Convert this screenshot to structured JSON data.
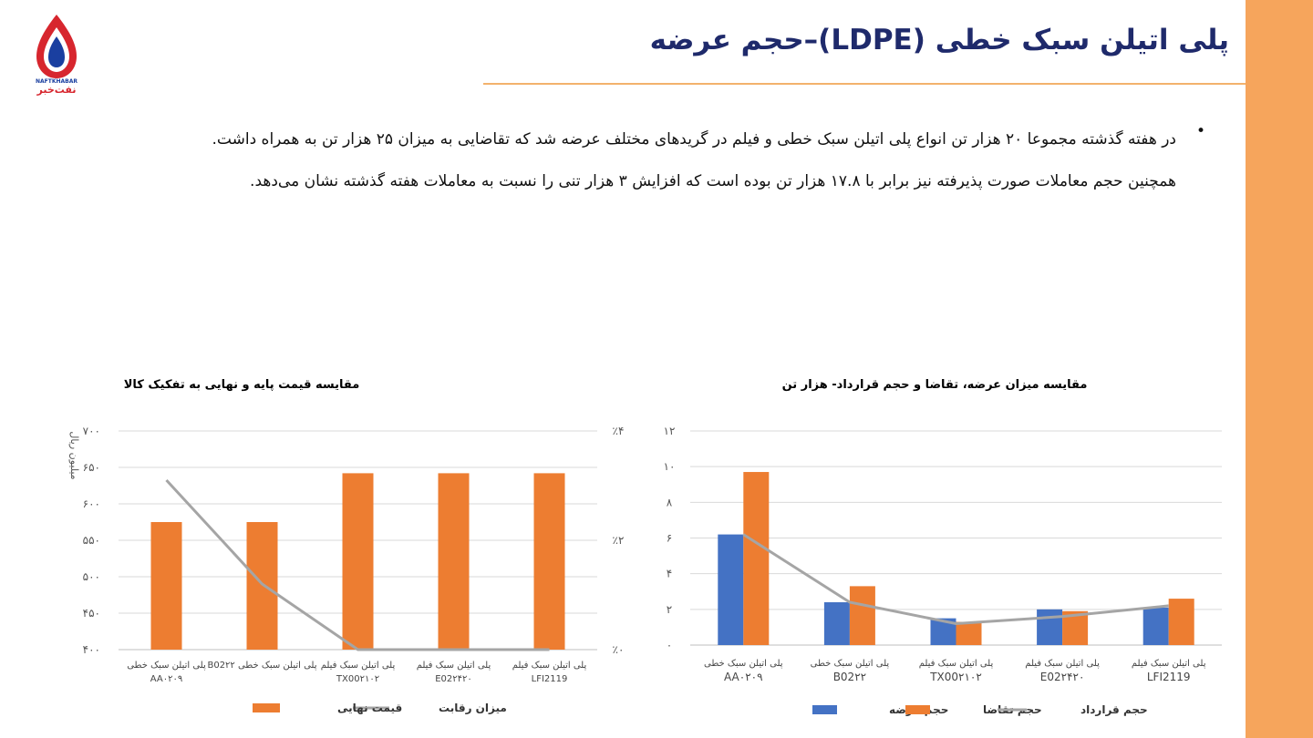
{
  "header": {
    "title": "پلی اتیلن سبک خطی (LDPE)–حجم عرضه",
    "logo_latin": "NAFTKHABAR",
    "logo_persian": "نفت‌خبر"
  },
  "bullets": [
    "در هفته گذشته مجموعا ۲۰ هزار تن انواع پلی اتیلن سبک خطی و فیلم در گریدهای مختلف عرضه شد که تقاضایی به میزان ۲۵ هزار تن به همراه داشت.",
    "همچنین حجم معاملات صورت پذیرفته نیز برابر با ۱۷.۸ هزار تن بوده است که افزایش ۳ هزار تنی را نسبت به معاملات هفته گذشته نشان می‌دهد."
  ],
  "colors": {
    "orange": "#ed7d31",
    "blue": "#4472c4",
    "gray": "#a5a5a5",
    "title": "#1f2a6b",
    "side": "#f6a55c"
  },
  "chart_data": [
    {
      "type": "bar+line",
      "title": "مقایسه قیمت پایه و نهایی به تفکیک کالا",
      "ylabel": "میلیون ریال",
      "categories": [
        [
          "پلی اتیلن سبک خطی",
          "AA۰۲۰۹"
        ],
        [
          "پلی اتیلن سبک خطی B02۲۲"
        ],
        [
          "پلی اتیلن سبک فیلم",
          "TX00۲۱۰۲"
        ],
        [
          "پلی اتیلن سبک فیلم",
          "E02۲۴۲۰"
        ],
        [
          "پلی اتیلن سبک فیلم",
          "LFI2119"
        ]
      ],
      "y_ticks": [
        "۷۰۰",
        "۶۵۰",
        "۶۰۰",
        "۵۵۰",
        "۵۰۰",
        "۴۵۰",
        "۴۰۰"
      ],
      "y2_ticks": [
        "٪۴",
        "٪۲",
        "٪۰"
      ],
      "ylim": [
        400,
        700
      ],
      "y2lim": [
        0,
        4
      ],
      "series": [
        {
          "name": "قیمت نهایی",
          "kind": "bar",
          "axis": "left",
          "values": [
            575,
            575,
            642,
            642,
            642
          ]
        },
        {
          "name": "میزان رقابت",
          "kind": "line",
          "axis": "right",
          "values": [
            3.1,
            1.2,
            0,
            0,
            0
          ]
        }
      ],
      "legend": "bottom"
    },
    {
      "type": "bar+line",
      "title": "مقایسه میزان عرضه، تقاضا و حجم قرارداد-  هزار تن",
      "categories": [
        [
          "پلی اتیلن سبک خطی",
          "AA۰۲۰۹"
        ],
        [
          "پلی اتیلن سبک خطی",
          "B02۲۲"
        ],
        [
          "پلی اتیلن سبک فیلم",
          "TX00۲۱۰۲"
        ],
        [
          "پلی اتیلن سبک فیلم",
          "E02۲۴۲۰"
        ],
        [
          "پلی اتیلن سبک فیلم",
          "LFI2119"
        ]
      ],
      "y_ticks": [
        "۱۲",
        "۱۰",
        "۸",
        "۶",
        "۴",
        "۲",
        "۰"
      ],
      "ylim": [
        0,
        12
      ],
      "series": [
        {
          "name": "حجم عرضه",
          "kind": "bar",
          "values": [
            6.2,
            2.4,
            1.5,
            2.0,
            2.1
          ]
        },
        {
          "name": "حجم تقاضا",
          "kind": "bar",
          "values": [
            9.7,
            3.3,
            1.3,
            1.9,
            2.6
          ]
        },
        {
          "name": "حجم قرارداد",
          "kind": "line",
          "values": [
            6.2,
            2.4,
            1.2,
            1.6,
            2.2
          ]
        }
      ],
      "legend": "bottom"
    }
  ]
}
